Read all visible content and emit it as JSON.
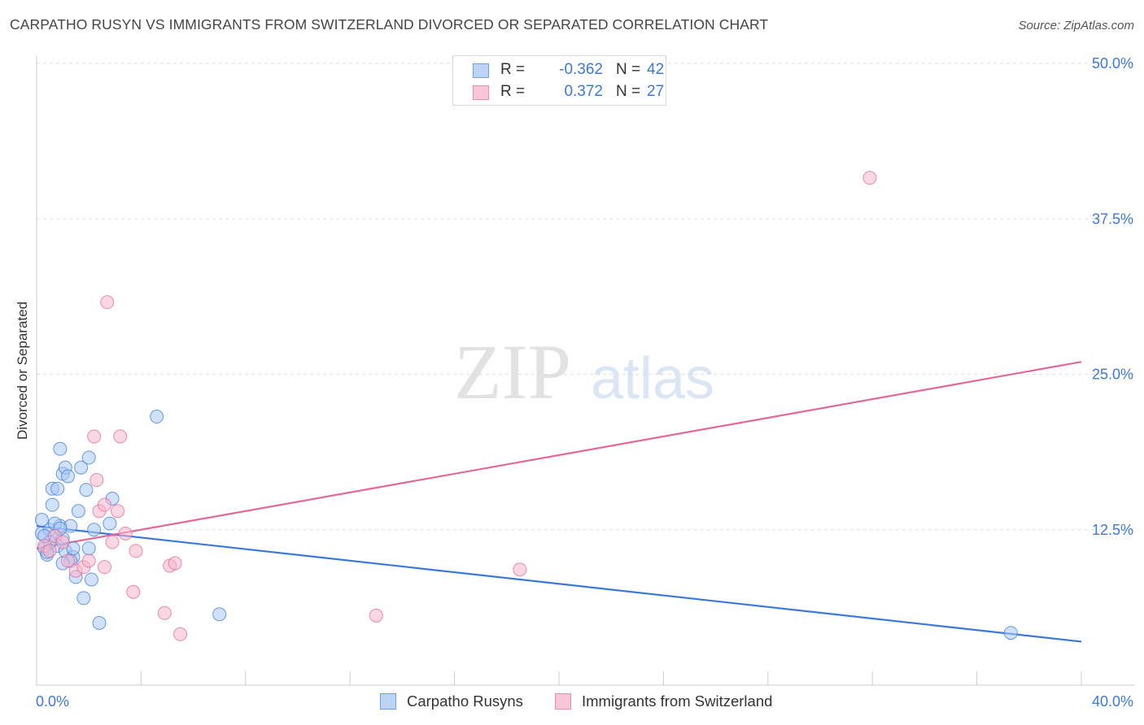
{
  "chart_data": {
    "type": "scatter",
    "title": "CARPATHO RUSYN VS IMMIGRANTS FROM SWITZERLAND DIVORCED OR SEPARATED CORRELATION CHART",
    "source": "Source: ZipAtlas.com",
    "watermark": {
      "zip": "ZIP",
      "atlas": "atlas"
    },
    "xlabel": "",
    "ylabel": "Divorced or Separated",
    "xlim": [
      0,
      40
    ],
    "ylim": [
      0,
      50
    ],
    "x_tick_labels": [
      "0.0%",
      "40.0%"
    ],
    "y_ticks": [
      12.5,
      25.0,
      37.5,
      50.0
    ],
    "y_tick_labels": [
      "12.5%",
      "25.0%",
      "37.5%",
      "50.0%"
    ],
    "legend_position": "bottom-center",
    "stats": [
      {
        "r_label": "R =",
        "r_value": "-0.362",
        "n_label": "N =",
        "n_value": "42"
      },
      {
        "r_label": "R =",
        "r_value": "0.372",
        "n_label": "N =",
        "n_value": "27"
      }
    ],
    "series": [
      {
        "name": "Carpatho Rusyns",
        "color": "#3c78d8",
        "fill": "#a9c9f5",
        "trend": {
          "x": [
            0,
            40
          ],
          "y": [
            12.8,
            3.5
          ]
        },
        "points": [
          [
            0.2,
            12.2
          ],
          [
            0.3,
            11.0
          ],
          [
            0.4,
            10.5
          ],
          [
            0.5,
            12.5
          ],
          [
            0.6,
            14.5
          ],
          [
            0.7,
            12.0
          ],
          [
            0.8,
            11.2
          ],
          [
            0.9,
            12.8
          ],
          [
            1.0,
            11.8
          ],
          [
            1.1,
            10.8
          ],
          [
            0.6,
            15.8
          ],
          [
            0.8,
            15.8
          ],
          [
            0.9,
            19.0
          ],
          [
            1.0,
            17.0
          ],
          [
            1.1,
            17.5
          ],
          [
            1.2,
            16.8
          ],
          [
            1.3,
            12.8
          ],
          [
            1.4,
            10.3
          ],
          [
            1.5,
            8.7
          ],
          [
            1.6,
            14.0
          ],
          [
            1.8,
            7.0
          ],
          [
            1.9,
            15.7
          ],
          [
            2.0,
            11.0
          ],
          [
            2.1,
            8.5
          ],
          [
            2.2,
            12.5
          ],
          [
            2.4,
            5.0
          ],
          [
            1.7,
            17.5
          ],
          [
            1.3,
            10.0
          ],
          [
            1.0,
            9.8
          ],
          [
            0.7,
            13.0
          ],
          [
            0.5,
            11.5
          ],
          [
            0.4,
            10.7
          ],
          [
            0.3,
            12.0
          ],
          [
            2.8,
            13.0
          ],
          [
            2.9,
            15.0
          ],
          [
            4.6,
            21.6
          ],
          [
            7.0,
            5.7
          ],
          [
            37.3,
            4.2
          ],
          [
            1.4,
            11.0
          ],
          [
            2.0,
            18.3
          ],
          [
            0.9,
            12.6
          ],
          [
            0.2,
            13.3
          ]
        ]
      },
      {
        "name": "Immigrants from Switzerland",
        "color": "#e0689a",
        "fill": "#f7b6cc",
        "trend": {
          "x": [
            0,
            40
          ],
          "y": [
            11.0,
            26.0
          ]
        },
        "points": [
          [
            0.3,
            11.2
          ],
          [
            0.5,
            10.8
          ],
          [
            0.7,
            12.0
          ],
          [
            1.0,
            11.5
          ],
          [
            1.2,
            10.0
          ],
          [
            1.5,
            9.2
          ],
          [
            1.8,
            9.5
          ],
          [
            2.0,
            10.0
          ],
          [
            2.2,
            20.0
          ],
          [
            2.4,
            14.0
          ],
          [
            2.6,
            14.5
          ],
          [
            2.9,
            11.5
          ],
          [
            3.1,
            14.0
          ],
          [
            3.4,
            12.2
          ],
          [
            3.7,
            7.5
          ],
          [
            3.8,
            10.8
          ],
          [
            4.9,
            5.8
          ],
          [
            5.1,
            9.6
          ],
          [
            5.3,
            9.8
          ],
          [
            5.5,
            4.1
          ],
          [
            2.3,
            16.5
          ],
          [
            2.7,
            30.8
          ],
          [
            2.6,
            9.5
          ],
          [
            13.0,
            5.6
          ],
          [
            18.5,
            9.3
          ],
          [
            31.9,
            40.8
          ],
          [
            3.2,
            20.0
          ]
        ]
      }
    ]
  }
}
